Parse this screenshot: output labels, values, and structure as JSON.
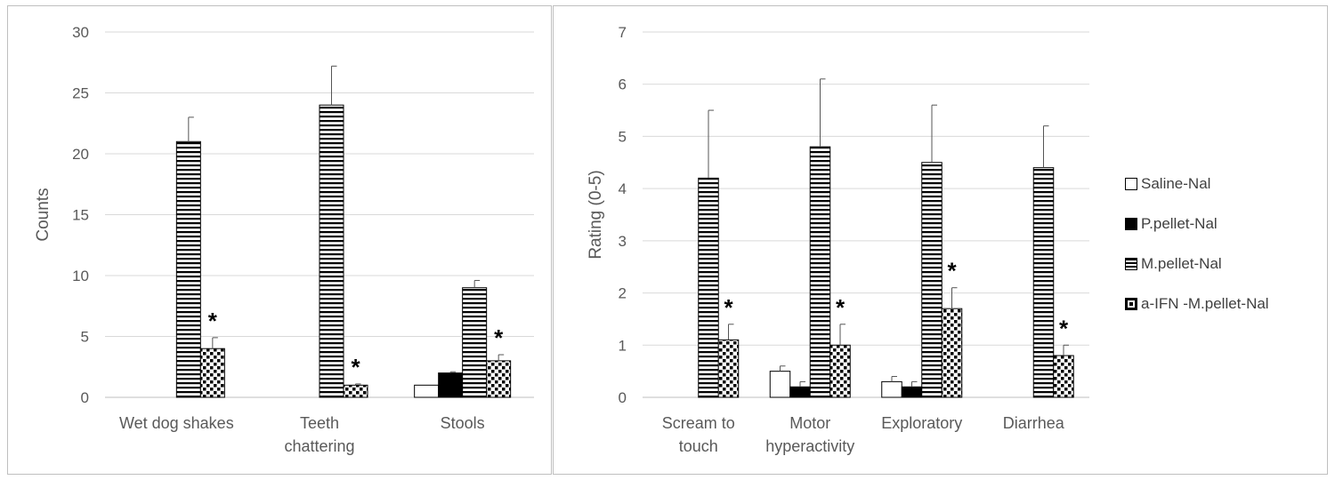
{
  "legend": [
    {
      "label": "Saline-Nal",
      "pattern": "white"
    },
    {
      "label": "P.pellet-Nal",
      "pattern": "black"
    },
    {
      "label": "M.pellet-Nal",
      "pattern": "hstripes"
    },
    {
      "label": "a-IFN -M.pellet-Nal",
      "pattern": "dots"
    }
  ],
  "chart_data": [
    {
      "type": "bar",
      "ylabel": "Counts",
      "ylim": [
        0,
        30
      ],
      "yticks": [
        "0",
        "5",
        "10",
        "15",
        "20",
        "25",
        "30"
      ],
      "categories": [
        [
          "Wet dog shakes"
        ],
        [
          "Teeth",
          "chattering"
        ],
        [
          "Stools"
        ]
      ],
      "grid": true,
      "series": [
        {
          "name": "Saline-Nal",
          "pattern": "white",
          "values": [
            0,
            0,
            1
          ],
          "errors": [
            0,
            0,
            0
          ]
        },
        {
          "name": "P.pellet-Nal",
          "pattern": "black",
          "values": [
            0,
            0,
            2
          ],
          "errors": [
            0,
            0,
            0.1
          ]
        },
        {
          "name": "M.pellet-Nal",
          "pattern": "hstripes",
          "values": [
            21,
            24,
            9
          ],
          "errors": [
            2,
            3.2,
            0.6
          ]
        },
        {
          "name": "a-IFN -M.pellet-Nal",
          "pattern": "dots",
          "values": [
            4,
            1,
            3
          ],
          "errors": [
            0.9,
            0.1,
            0.5
          ]
        }
      ],
      "significance": [
        {
          "category": 0,
          "series": 3,
          "label": "*"
        },
        {
          "category": 1,
          "series": 3,
          "label": "*"
        },
        {
          "category": 2,
          "series": 3,
          "label": "*"
        }
      ]
    },
    {
      "type": "bar",
      "ylabel": "Rating (0-5)",
      "ylim": [
        0,
        7
      ],
      "yticks": [
        "0",
        "1",
        "2",
        "3",
        "4",
        "5",
        "6",
        "7"
      ],
      "categories": [
        [
          "Scream to",
          "touch"
        ],
        [
          "Motor",
          "hyperactivity"
        ],
        [
          "Exploratory"
        ],
        [
          "Diarrhea"
        ]
      ],
      "grid": true,
      "legend_position": "right",
      "series": [
        {
          "name": "Saline-Nal",
          "pattern": "white",
          "values": [
            0,
            0.5,
            0.3,
            0
          ],
          "errors": [
            0,
            0.1,
            0.1,
            0
          ]
        },
        {
          "name": "P.pellet-Nal",
          "pattern": "black",
          "values": [
            0,
            0.2,
            0.2,
            0
          ],
          "errors": [
            0,
            0.1,
            0.1,
            0
          ]
        },
        {
          "name": "M.pellet-Nal",
          "pattern": "hstripes",
          "values": [
            4.2,
            4.8,
            4.5,
            4.4
          ],
          "errors": [
            1.3,
            1.3,
            1.1,
            0.8
          ]
        },
        {
          "name": "a-IFN -M.pellet-Nal",
          "pattern": "dots",
          "values": [
            1.1,
            1.0,
            1.7,
            0.8
          ],
          "errors": [
            0.3,
            0.4,
            0.4,
            0.2
          ]
        }
      ],
      "significance": [
        {
          "category": 0,
          "series": 3,
          "label": "*"
        },
        {
          "category": 1,
          "series": 3,
          "label": "*"
        },
        {
          "category": 2,
          "series": 3,
          "label": "*"
        },
        {
          "category": 3,
          "series": 3,
          "label": "*"
        }
      ]
    }
  ]
}
